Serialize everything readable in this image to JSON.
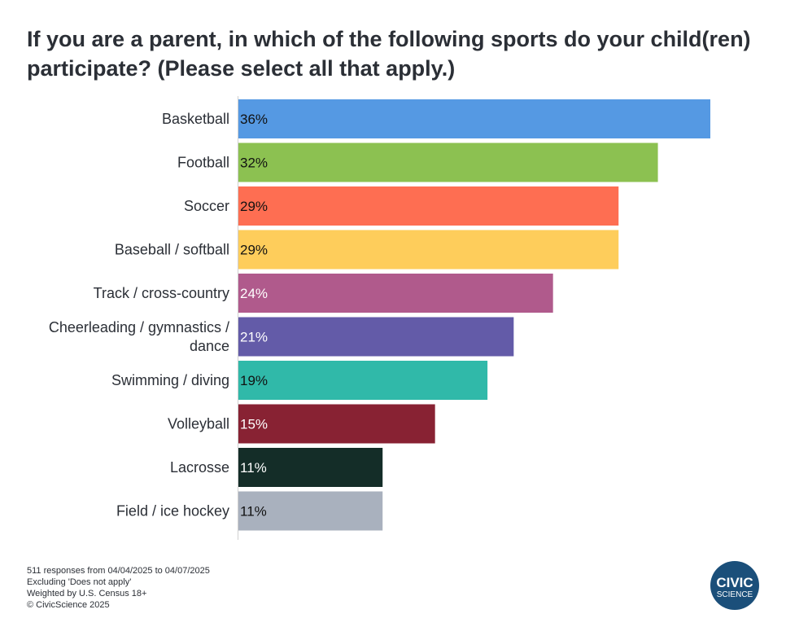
{
  "chart_data": {
    "type": "bar",
    "orientation": "horizontal",
    "title": "If you are a parent, in which of the following sports do your child(ren) participate? (Please select all that apply.)",
    "categories": [
      "Basketball",
      "Football",
      "Soccer",
      "Baseball / softball",
      "Track / cross-country",
      "Cheerleading / gymnastics / dance",
      "Swimming / diving",
      "Volleyball",
      "Lacrosse",
      "Field / ice hockey"
    ],
    "category_lines": [
      [
        "Basketball"
      ],
      [
        "Football"
      ],
      [
        "Soccer"
      ],
      [
        "Baseball / softball"
      ],
      [
        "Track / cross-country"
      ],
      [
        "Cheerleading / gymnastics /",
        "dance"
      ],
      [
        "Swimming / diving"
      ],
      [
        "Volleyball"
      ],
      [
        "Lacrosse"
      ],
      [
        "Field / ice hockey"
      ]
    ],
    "values": [
      36,
      32,
      29,
      29,
      24,
      21,
      19,
      15,
      11,
      11
    ],
    "value_labels": [
      "36%",
      "32%",
      "29%",
      "29%",
      "24%",
      "21%",
      "19%",
      "15%",
      "11%",
      "11%"
    ],
    "colors": [
      "#5599e3",
      "#8cc151",
      "#fe6e52",
      "#fecd5b",
      "#b05a8c",
      "#635ba8",
      "#30b9a9",
      "#882233",
      "#142d28",
      "#a9b1be"
    ],
    "label_colors": [
      "#111111",
      "#111111",
      "#111111",
      "#111111",
      "#ffffff",
      "#ffffff",
      "#111111",
      "#ffffff",
      "#ffffff",
      "#111111"
    ],
    "xlim": [
      0,
      36
    ],
    "xlabel": "",
    "ylabel": "",
    "grid": false,
    "legend": "none"
  },
  "footer": {
    "responses": "511 responses from 04/04/2025 to 04/07/2025",
    "excluding": "Excluding 'Does not apply'",
    "weighting": "Weighted by U.S. Census 18+",
    "copyright": "© CivicScience 2025"
  },
  "logo": {
    "line1": "CIVIC",
    "line2": "SCIENCE",
    "color": "#1b4f7a"
  }
}
